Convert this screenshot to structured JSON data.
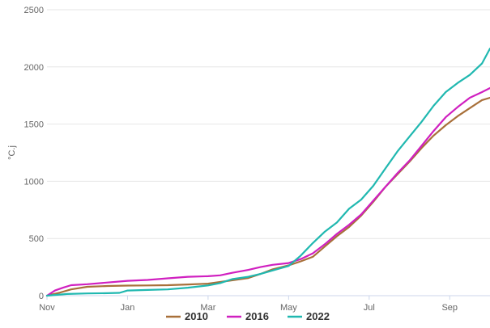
{
  "chart_data": {
    "type": "line",
    "ylabel": "°C.j",
    "ylim": [
      0,
      2500
    ],
    "yticks": [
      0,
      500,
      1000,
      1500,
      2000,
      2500
    ],
    "xlim": [
      0,
      11
    ],
    "xticks": [
      {
        "label": "Nov",
        "value": 0
      },
      {
        "label": "Jan",
        "value": 2
      },
      {
        "label": "Mar",
        "value": 4
      },
      {
        "label": "May",
        "value": 6
      },
      {
        "label": "Jul",
        "value": 8
      },
      {
        "label": "Sep",
        "value": 10
      }
    ],
    "grid": "horizontal",
    "legend_position": "bottom",
    "series": [
      {
        "name": "2010",
        "color": "#A8703A",
        "points": [
          [
            0,
            0
          ],
          [
            0.3,
            25
          ],
          [
            0.6,
            55
          ],
          [
            1,
            78
          ],
          [
            1.5,
            85
          ],
          [
            2,
            88
          ],
          [
            2.5,
            90
          ],
          [
            3,
            92
          ],
          [
            3.5,
            98
          ],
          [
            4,
            105
          ],
          [
            4.5,
            130
          ],
          [
            5,
            155
          ],
          [
            5.3,
            190
          ],
          [
            5.6,
            230
          ],
          [
            6,
            265
          ],
          [
            6.3,
            300
          ],
          [
            6.6,
            340
          ],
          [
            6.9,
            430
          ],
          [
            7.2,
            520
          ],
          [
            7.5,
            600
          ],
          [
            7.8,
            700
          ],
          [
            8.1,
            820
          ],
          [
            8.4,
            950
          ],
          [
            8.7,
            1060
          ],
          [
            9,
            1170
          ],
          [
            9.3,
            1290
          ],
          [
            9.6,
            1400
          ],
          [
            9.9,
            1490
          ],
          [
            10.2,
            1570
          ],
          [
            10.5,
            1640
          ],
          [
            10.8,
            1710
          ],
          [
            11,
            1730
          ]
        ]
      },
      {
        "name": "2016",
        "color": "#D020C0",
        "points": [
          [
            0,
            0
          ],
          [
            0.2,
            45
          ],
          [
            0.4,
            70
          ],
          [
            0.6,
            92
          ],
          [
            1,
            100
          ],
          [
            1.5,
            115
          ],
          [
            2,
            130
          ],
          [
            2.5,
            138
          ],
          [
            3,
            152
          ],
          [
            3.5,
            165
          ],
          [
            4,
            170
          ],
          [
            4.3,
            178
          ],
          [
            4.6,
            200
          ],
          [
            5,
            225
          ],
          [
            5.3,
            250
          ],
          [
            5.6,
            270
          ],
          [
            6,
            285
          ],
          [
            6.3,
            320
          ],
          [
            6.6,
            370
          ],
          [
            6.9,
            450
          ],
          [
            7.2,
            540
          ],
          [
            7.5,
            620
          ],
          [
            7.8,
            710
          ],
          [
            8.1,
            830
          ],
          [
            8.4,
            950
          ],
          [
            8.7,
            1070
          ],
          [
            9,
            1180
          ],
          [
            9.3,
            1310
          ],
          [
            9.6,
            1440
          ],
          [
            9.9,
            1560
          ],
          [
            10.2,
            1650
          ],
          [
            10.5,
            1730
          ],
          [
            10.8,
            1780
          ],
          [
            11,
            1815
          ]
        ]
      },
      {
        "name": "2022",
        "color": "#20B8B0",
        "points": [
          [
            0,
            0
          ],
          [
            0.5,
            15
          ],
          [
            1,
            20
          ],
          [
            1.5,
            22
          ],
          [
            1.8,
            25
          ],
          [
            2,
            45
          ],
          [
            2.5,
            50
          ],
          [
            3,
            55
          ],
          [
            3.5,
            70
          ],
          [
            4,
            90
          ],
          [
            4.3,
            110
          ],
          [
            4.6,
            145
          ],
          [
            5,
            165
          ],
          [
            5.3,
            190
          ],
          [
            5.6,
            220
          ],
          [
            6,
            260
          ],
          [
            6.3,
            350
          ],
          [
            6.6,
            460
          ],
          [
            6.9,
            560
          ],
          [
            7.2,
            640
          ],
          [
            7.5,
            760
          ],
          [
            7.8,
            840
          ],
          [
            8.1,
            960
          ],
          [
            8.4,
            1110
          ],
          [
            8.7,
            1260
          ],
          [
            9,
            1390
          ],
          [
            9.3,
            1520
          ],
          [
            9.6,
            1660
          ],
          [
            9.9,
            1780
          ],
          [
            10.2,
            1860
          ],
          [
            10.5,
            1930
          ],
          [
            10.8,
            2030
          ],
          [
            11,
            2160
          ]
        ]
      }
    ]
  }
}
